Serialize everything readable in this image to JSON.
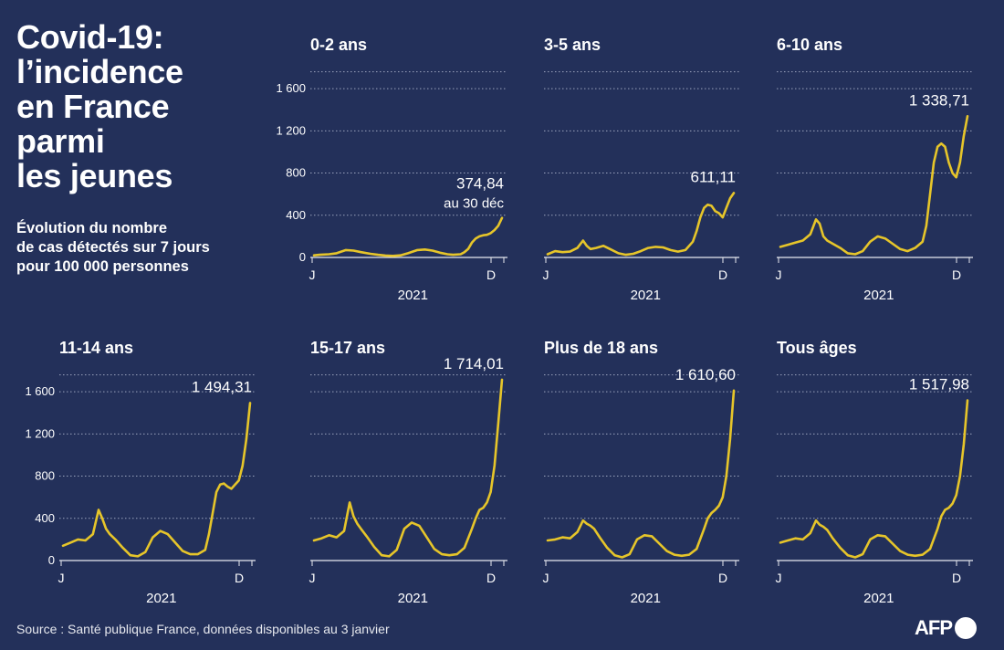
{
  "title": "Covid-19:\nl’incidence\nen France\nparmi\nles jeunes",
  "subtitle": "Évolution du nombre\nde cas détectés sur 7 jours\npour 100 000 personnes",
  "source": "Source : Santé publique France, données disponibles au 3 janvier",
  "logo_text": "AFP",
  "colors": {
    "background": "#23305a",
    "line": "#e6c52a",
    "grid": "#9aa3bd",
    "text": "#ffffff"
  },
  "chart_data": [
    {
      "type": "line",
      "title": "0-2 ans",
      "ylim": [
        0,
        1800
      ],
      "yticks": [
        {
          "value": 0,
          "label": "0"
        },
        {
          "value": 400,
          "label": "400"
        },
        {
          "value": 800,
          "label": "800"
        },
        {
          "value": 1200,
          "label": "1 200"
        },
        {
          "value": 1600,
          "label": "1 600"
        }
      ],
      "xticks": [
        "J",
        "D"
      ],
      "xlabel": "2021",
      "end_label": "374,84",
      "end_note": "au 30 déc",
      "x": [
        0,
        0.03,
        0.08,
        0.12,
        0.17,
        0.21,
        0.25,
        0.3,
        0.34,
        0.38,
        0.42,
        0.46,
        0.5,
        0.55,
        0.59,
        0.63,
        0.67,
        0.71,
        0.74,
        0.78,
        0.8,
        0.82,
        0.84,
        0.86,
        0.88,
        0.9,
        0.92,
        0.94,
        0.96,
        0.98,
        1
      ],
      "values": [
        20,
        25,
        30,
        40,
        70,
        65,
        50,
        35,
        25,
        18,
        15,
        20,
        40,
        70,
        75,
        65,
        45,
        30,
        25,
        30,
        50,
        80,
        140,
        180,
        200,
        210,
        215,
        230,
        260,
        300,
        375
      ]
    },
    {
      "type": "line",
      "title": "3-5 ans",
      "ylim": [
        0,
        1800
      ],
      "yticks": [
        {
          "value": 0,
          "label": "0"
        },
        {
          "value": 400,
          "label": "400"
        },
        {
          "value": 800,
          "label": "800"
        },
        {
          "value": 1200,
          "label": "1 200"
        },
        {
          "value": 1600,
          "label": "1 600"
        }
      ],
      "xticks": [
        "J",
        "D"
      ],
      "xlabel": "2021",
      "end_label": "611,11",
      "end_note": "",
      "x": [
        0,
        0.04,
        0.08,
        0.12,
        0.16,
        0.19,
        0.21,
        0.23,
        0.26,
        0.3,
        0.34,
        0.38,
        0.42,
        0.46,
        0.5,
        0.54,
        0.58,
        0.62,
        0.66,
        0.7,
        0.74,
        0.78,
        0.8,
        0.82,
        0.84,
        0.86,
        0.88,
        0.9,
        0.92,
        0.94,
        0.96,
        0.98,
        1
      ],
      "values": [
        30,
        60,
        50,
        55,
        90,
        160,
        110,
        80,
        90,
        110,
        75,
        40,
        25,
        35,
        60,
        90,
        100,
        95,
        70,
        55,
        70,
        150,
        250,
        380,
        470,
        500,
        490,
        440,
        420,
        380,
        470,
        560,
        611
      ]
    },
    {
      "type": "line",
      "title": "6-10 ans",
      "ylim": [
        0,
        1800
      ],
      "yticks": [
        {
          "value": 0,
          "label": "0"
        },
        {
          "value": 400,
          "label": "400"
        },
        {
          "value": 800,
          "label": "800"
        },
        {
          "value": 1200,
          "label": "1 200"
        },
        {
          "value": 1600,
          "label": "1 600"
        }
      ],
      "xticks": [
        "J",
        "D"
      ],
      "xlabel": "2021",
      "end_label": "1 338,71",
      "end_note": "",
      "x": [
        0,
        0.04,
        0.08,
        0.12,
        0.16,
        0.19,
        0.21,
        0.23,
        0.25,
        0.28,
        0.32,
        0.36,
        0.4,
        0.44,
        0.48,
        0.52,
        0.56,
        0.6,
        0.64,
        0.68,
        0.72,
        0.76,
        0.78,
        0.8,
        0.82,
        0.84,
        0.86,
        0.88,
        0.9,
        0.92,
        0.94,
        0.96,
        0.98,
        1
      ],
      "values": [
        100,
        120,
        140,
        160,
        220,
        360,
        320,
        200,
        160,
        130,
        90,
        40,
        30,
        60,
        150,
        200,
        180,
        130,
        80,
        60,
        90,
        150,
        300,
        600,
        900,
        1050,
        1080,
        1050,
        900,
        800,
        760,
        900,
        1150,
        1339
      ]
    },
    {
      "type": "line",
      "title": "11-14 ans",
      "ylim": [
        0,
        1800
      ],
      "yticks": [
        {
          "value": 0,
          "label": "0"
        },
        {
          "value": 400,
          "label": "400"
        },
        {
          "value": 800,
          "label": "800"
        },
        {
          "value": 1200,
          "label": "1 200"
        },
        {
          "value": 1600,
          "label": "1 600"
        }
      ],
      "xticks": [
        "J",
        "D"
      ],
      "xlabel": "2021",
      "end_label": "1 494,31",
      "end_note": "",
      "x": [
        0,
        0.04,
        0.08,
        0.12,
        0.16,
        0.19,
        0.21,
        0.23,
        0.25,
        0.28,
        0.32,
        0.36,
        0.4,
        0.44,
        0.48,
        0.52,
        0.56,
        0.6,
        0.64,
        0.68,
        0.72,
        0.76,
        0.78,
        0.8,
        0.82,
        0.84,
        0.86,
        0.88,
        0.9,
        0.92,
        0.94,
        0.96,
        0.98,
        1
      ],
      "values": [
        140,
        170,
        200,
        190,
        250,
        480,
        400,
        300,
        250,
        200,
        120,
        50,
        40,
        80,
        220,
        280,
        250,
        170,
        90,
        60,
        60,
        100,
        250,
        450,
        650,
        720,
        730,
        700,
        680,
        720,
        760,
        900,
        1150,
        1494
      ]
    },
    {
      "type": "line",
      "title": "15-17 ans",
      "ylim": [
        0,
        1800
      ],
      "yticks": [
        {
          "value": 0,
          "label": "0"
        },
        {
          "value": 400,
          "label": "400"
        },
        {
          "value": 800,
          "label": "800"
        },
        {
          "value": 1200,
          "label": "1 200"
        },
        {
          "value": 1600,
          "label": "1 600"
        }
      ],
      "xticks": [
        "J",
        "D"
      ],
      "xlabel": "2021",
      "end_label": "1 714,01",
      "end_note": "",
      "x": [
        0,
        0.04,
        0.08,
        0.12,
        0.16,
        0.19,
        0.21,
        0.23,
        0.25,
        0.28,
        0.32,
        0.36,
        0.4,
        0.44,
        0.48,
        0.52,
        0.56,
        0.6,
        0.64,
        0.68,
        0.72,
        0.76,
        0.8,
        0.84,
        0.86,
        0.88,
        0.9,
        0.92,
        0.94,
        0.96,
        0.98,
        1
      ],
      "values": [
        190,
        210,
        240,
        220,
        280,
        550,
        420,
        350,
        300,
        230,
        130,
        50,
        40,
        100,
        300,
        360,
        330,
        220,
        110,
        60,
        50,
        60,
        120,
        300,
        400,
        480,
        500,
        550,
        650,
        900,
        1300,
        1714
      ]
    },
    {
      "type": "line",
      "title": "Plus de 18 ans",
      "ylim": [
        0,
        1800
      ],
      "yticks": [
        {
          "value": 0,
          "label": "0"
        },
        {
          "value": 400,
          "label": "400"
        },
        {
          "value": 800,
          "label": "800"
        },
        {
          "value": 1200,
          "label": "1 200"
        },
        {
          "value": 1600,
          "label": "1 600"
        }
      ],
      "xticks": [
        "J",
        "D"
      ],
      "xlabel": "2021",
      "end_label": "1 610,60",
      "end_note": "",
      "x": [
        0,
        0.04,
        0.08,
        0.12,
        0.16,
        0.19,
        0.21,
        0.23,
        0.25,
        0.28,
        0.32,
        0.36,
        0.4,
        0.44,
        0.48,
        0.52,
        0.56,
        0.6,
        0.64,
        0.68,
        0.72,
        0.76,
        0.8,
        0.84,
        0.86,
        0.88,
        0.9,
        0.92,
        0.94,
        0.96,
        0.98,
        1
      ],
      "values": [
        190,
        200,
        220,
        210,
        270,
        380,
        350,
        330,
        300,
        220,
        120,
        50,
        30,
        60,
        200,
        240,
        230,
        160,
        90,
        55,
        45,
        55,
        110,
        300,
        400,
        450,
        480,
        520,
        600,
        800,
        1150,
        1611
      ]
    },
    {
      "type": "line",
      "title": "Tous âges",
      "ylim": [
        0,
        1800
      ],
      "yticks": [
        {
          "value": 0,
          "label": "0"
        },
        {
          "value": 400,
          "label": "400"
        },
        {
          "value": 800,
          "label": "800"
        },
        {
          "value": 1200,
          "label": "1 200"
        },
        {
          "value": 1600,
          "label": "1 600"
        }
      ],
      "xticks": [
        "J",
        "D"
      ],
      "xlabel": "2021",
      "end_label": "1 517,98",
      "end_note": "",
      "x": [
        0,
        0.04,
        0.08,
        0.12,
        0.16,
        0.19,
        0.21,
        0.23,
        0.25,
        0.28,
        0.32,
        0.36,
        0.4,
        0.44,
        0.48,
        0.52,
        0.56,
        0.6,
        0.64,
        0.68,
        0.72,
        0.76,
        0.8,
        0.84,
        0.86,
        0.88,
        0.9,
        0.92,
        0.94,
        0.96,
        0.98,
        1
      ],
      "values": [
        170,
        190,
        210,
        200,
        260,
        380,
        340,
        320,
        290,
        210,
        120,
        50,
        30,
        60,
        200,
        240,
        230,
        160,
        90,
        55,
        45,
        55,
        110,
        300,
        420,
        480,
        500,
        540,
        620,
        800,
        1100,
        1518
      ]
    }
  ]
}
